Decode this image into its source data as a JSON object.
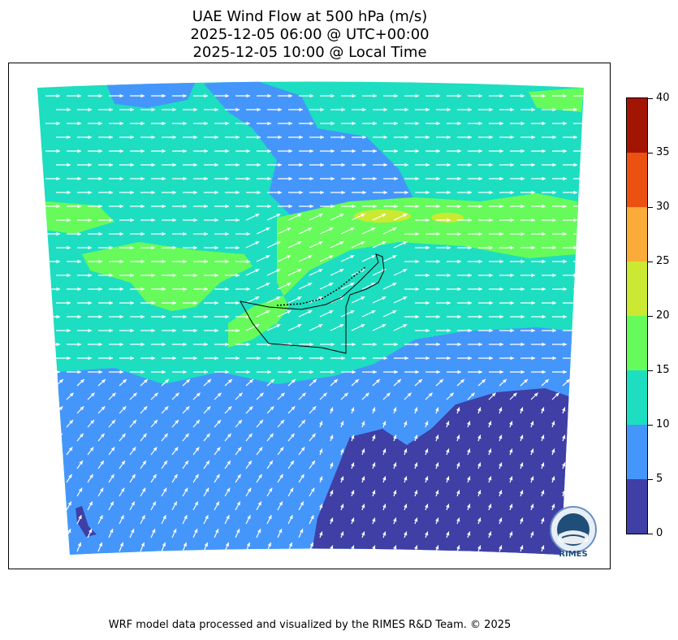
{
  "title": {
    "line1": "UAE Wind Flow at 500 hPa (m/s)",
    "line2": "2025-12-05 06:00 @ UTC+00:00",
    "line3": "2025-12-05 10:00 @ Local Time"
  },
  "colorbar": {
    "ticks": [
      "0",
      "5",
      "10",
      "15",
      "20",
      "25",
      "30",
      "35",
      "40"
    ],
    "bins": [
      {
        "from": 0,
        "to": 5,
        "color": "#3f3fa6"
      },
      {
        "from": 5,
        "to": 10,
        "color": "#4596fb"
      },
      {
        "from": 10,
        "to": 15,
        "color": "#1ddec1"
      },
      {
        "from": 15,
        "to": 20,
        "color": "#66fb5a"
      },
      {
        "from": 20,
        "to": 25,
        "color": "#cbe932"
      },
      {
        "from": 25,
        "to": 30,
        "color": "#fbab38"
      },
      {
        "from": 30,
        "to": 35,
        "color": "#eb5211"
      },
      {
        "from": 35,
        "to": 40,
        "color": "#a31503"
      }
    ]
  },
  "logo": {
    "name": "rimes-logo",
    "text": "RIMES"
  },
  "footer": "WRF model data processed and visualized by the RIMES R&D Team. © 2025"
}
